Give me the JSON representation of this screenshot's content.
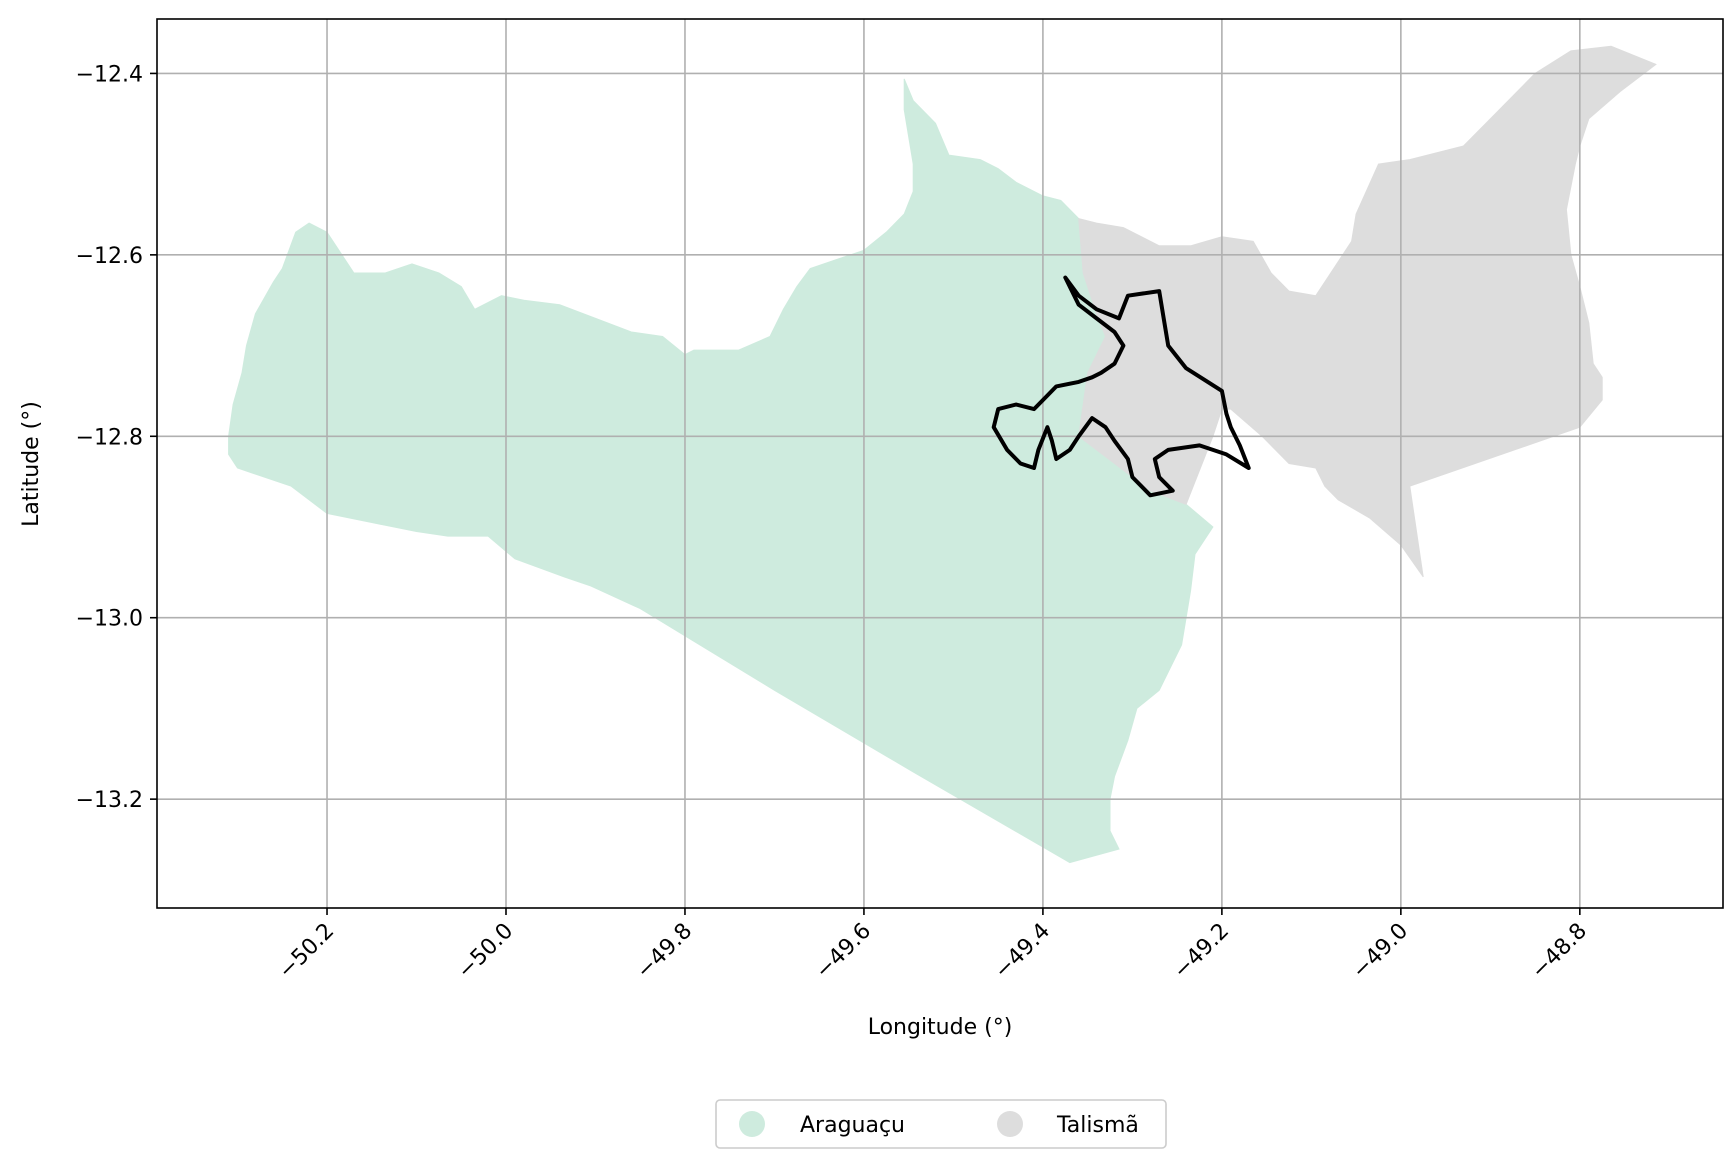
{
  "chart_data": {
    "type": "map",
    "xlabel": "Longitude (°)",
    "ylabel": "Latitude (°)",
    "xlim": [
      -50.39,
      -48.64
    ],
    "ylim": [
      -13.32,
      -12.34
    ],
    "xticks": [
      -50.2,
      -50.0,
      -49.8,
      -49.6,
      -49.4,
      -49.2,
      -49.0,
      -48.8
    ],
    "yticks": [
      -12.4,
      -12.6,
      -12.8,
      -13.0,
      -13.2
    ],
    "xtick_labels": [
      "−50.2",
      "−50.0",
      "−49.8",
      "−49.6",
      "−49.4",
      "−49.2",
      "−49.0",
      "−48.8"
    ],
    "ytick_labels": [
      "−12.4",
      "−12.6",
      "−12.8",
      "−13.0",
      "−13.2"
    ],
    "grid": true,
    "legend_position": "bottom-center",
    "regions": [
      {
        "name": "Araguaçu",
        "color": "#ceebde",
        "polygon": [
          [
            -49.555,
            -12.406
          ],
          [
            -49.545,
            -12.43
          ],
          [
            -49.52,
            -12.455
          ],
          [
            -49.505,
            -12.49
          ],
          [
            -49.47,
            -12.495
          ],
          [
            -49.45,
            -12.505
          ],
          [
            -49.43,
            -12.52
          ],
          [
            -49.4,
            -12.535
          ],
          [
            -49.38,
            -12.54
          ],
          [
            -49.36,
            -12.56
          ],
          [
            -49.355,
            -12.62
          ],
          [
            -49.34,
            -12.665
          ],
          [
            -49.33,
            -12.69
          ],
          [
            -49.35,
            -12.73
          ],
          [
            -49.36,
            -12.8
          ],
          [
            -49.32,
            -12.83
          ],
          [
            -49.28,
            -12.86
          ],
          [
            -49.24,
            -12.875
          ],
          [
            -49.21,
            -12.9
          ],
          [
            -49.23,
            -12.93
          ],
          [
            -49.235,
            -12.97
          ],
          [
            -49.245,
            -13.03
          ],
          [
            -49.27,
            -13.08
          ],
          [
            -49.295,
            -13.1
          ],
          [
            -49.305,
            -13.135
          ],
          [
            -49.32,
            -13.175
          ],
          [
            -49.325,
            -13.2
          ],
          [
            -49.325,
            -13.235
          ],
          [
            -49.315,
            -13.255
          ],
          [
            -49.37,
            -13.27
          ],
          [
            -49.545,
            -13.17
          ],
          [
            -49.7,
            -13.08
          ],
          [
            -49.85,
            -12.99
          ],
          [
            -49.905,
            -12.965
          ],
          [
            -49.935,
            -12.955
          ],
          [
            -49.99,
            -12.935
          ],
          [
            -50.02,
            -12.91
          ],
          [
            -50.065,
            -12.91
          ],
          [
            -50.1,
            -12.905
          ],
          [
            -50.15,
            -12.895
          ],
          [
            -50.2,
            -12.885
          ],
          [
            -50.24,
            -12.855
          ],
          [
            -50.3,
            -12.835
          ],
          [
            -50.31,
            -12.82
          ],
          [
            -50.31,
            -12.8
          ],
          [
            -50.305,
            -12.765
          ],
          [
            -50.295,
            -12.73
          ],
          [
            -50.29,
            -12.7
          ],
          [
            -50.28,
            -12.665
          ],
          [
            -50.26,
            -12.63
          ],
          [
            -50.25,
            -12.615
          ],
          [
            -50.235,
            -12.575
          ],
          [
            -50.22,
            -12.565
          ],
          [
            -50.2,
            -12.575
          ],
          [
            -50.17,
            -12.62
          ],
          [
            -50.135,
            -12.62
          ],
          [
            -50.105,
            -12.61
          ],
          [
            -50.075,
            -12.62
          ],
          [
            -50.05,
            -12.635
          ],
          [
            -50.035,
            -12.66
          ],
          [
            -50.005,
            -12.645
          ],
          [
            -49.98,
            -12.65
          ],
          [
            -49.94,
            -12.655
          ],
          [
            -49.9,
            -12.67
          ],
          [
            -49.86,
            -12.685
          ],
          [
            -49.825,
            -12.69
          ],
          [
            -49.8,
            -12.71
          ],
          [
            -49.79,
            -12.705
          ],
          [
            -49.74,
            -12.705
          ],
          [
            -49.705,
            -12.69
          ],
          [
            -49.69,
            -12.66
          ],
          [
            -49.675,
            -12.635
          ],
          [
            -49.66,
            -12.615
          ],
          [
            -49.63,
            -12.605
          ],
          [
            -49.6,
            -12.595
          ],
          [
            -49.575,
            -12.575
          ],
          [
            -49.555,
            -12.555
          ],
          [
            -49.545,
            -12.53
          ],
          [
            -49.545,
            -12.5
          ],
          [
            -49.55,
            -12.47
          ],
          [
            -49.555,
            -12.44
          ]
        ]
      },
      {
        "name": "Talismã",
        "color": "#dddddd",
        "polygon": [
          [
            -49.36,
            -12.56
          ],
          [
            -49.34,
            -12.565
          ],
          [
            -49.31,
            -12.57
          ],
          [
            -49.27,
            -12.59
          ],
          [
            -49.235,
            -12.59
          ],
          [
            -49.2,
            -12.58
          ],
          [
            -49.165,
            -12.585
          ],
          [
            -49.145,
            -12.62
          ],
          [
            -49.125,
            -12.64
          ],
          [
            -49.095,
            -12.645
          ],
          [
            -49.075,
            -12.615
          ],
          [
            -49.055,
            -12.585
          ],
          [
            -49.05,
            -12.555
          ],
          [
            -49.025,
            -12.5
          ],
          [
            -48.99,
            -12.495
          ],
          [
            -48.93,
            -12.48
          ],
          [
            -48.895,
            -12.445
          ],
          [
            -48.85,
            -12.4
          ],
          [
            -48.81,
            -12.375
          ],
          [
            -48.765,
            -12.37
          ],
          [
            -48.715,
            -12.39
          ],
          [
            -48.755,
            -12.42
          ],
          [
            -48.79,
            -12.45
          ],
          [
            -48.8,
            -12.48
          ],
          [
            -48.805,
            -12.5
          ],
          [
            -48.815,
            -12.55
          ],
          [
            -48.81,
            -12.6
          ],
          [
            -48.8,
            -12.635
          ],
          [
            -48.79,
            -12.675
          ],
          [
            -48.785,
            -12.72
          ],
          [
            -48.775,
            -12.735
          ],
          [
            -48.775,
            -12.76
          ],
          [
            -48.8,
            -12.79
          ],
          [
            -48.99,
            -12.855
          ],
          [
            -48.975,
            -12.955
          ],
          [
            -49.0,
            -12.92
          ],
          [
            -49.035,
            -12.89
          ],
          [
            -49.07,
            -12.87
          ],
          [
            -49.085,
            -12.855
          ],
          [
            -49.095,
            -12.835
          ],
          [
            -49.125,
            -12.83
          ],
          [
            -49.155,
            -12.8
          ],
          [
            -49.19,
            -12.77
          ],
          [
            -49.2,
            -12.77
          ],
          [
            -49.21,
            -12.8
          ],
          [
            -49.24,
            -12.875
          ],
          [
            -49.28,
            -12.86
          ],
          [
            -49.32,
            -12.83
          ],
          [
            -49.36,
            -12.8
          ],
          [
            -49.35,
            -12.73
          ],
          [
            -49.33,
            -12.69
          ],
          [
            -49.34,
            -12.665
          ],
          [
            -49.355,
            -12.62
          ]
        ]
      }
    ],
    "outline": {
      "stroke": "#000000",
      "polygon": [
        [
          -49.375,
          -12.625
        ],
        [
          -49.36,
          -12.645
        ],
        [
          -49.34,
          -12.66
        ],
        [
          -49.315,
          -12.67
        ],
        [
          -49.305,
          -12.645
        ],
        [
          -49.27,
          -12.64
        ],
        [
          -49.265,
          -12.67
        ],
        [
          -49.26,
          -12.7
        ],
        [
          -49.24,
          -12.725
        ],
        [
          -49.2,
          -12.75
        ],
        [
          -49.195,
          -12.775
        ],
        [
          -49.19,
          -12.79
        ],
        [
          -49.18,
          -12.81
        ],
        [
          -49.17,
          -12.835
        ],
        [
          -49.195,
          -12.82
        ],
        [
          -49.225,
          -12.81
        ],
        [
          -49.26,
          -12.815
        ],
        [
          -49.275,
          -12.825
        ],
        [
          -49.27,
          -12.845
        ],
        [
          -49.255,
          -12.86
        ],
        [
          -49.28,
          -12.865
        ],
        [
          -49.3,
          -12.845
        ],
        [
          -49.305,
          -12.825
        ],
        [
          -49.32,
          -12.805
        ],
        [
          -49.33,
          -12.79
        ],
        [
          -49.345,
          -12.78
        ],
        [
          -49.36,
          -12.8
        ],
        [
          -49.37,
          -12.815
        ],
        [
          -49.385,
          -12.825
        ],
        [
          -49.39,
          -12.805
        ],
        [
          -49.395,
          -12.79
        ],
        [
          -49.405,
          -12.815
        ],
        [
          -49.41,
          -12.835
        ],
        [
          -49.425,
          -12.83
        ],
        [
          -49.44,
          -12.815
        ],
        [
          -49.455,
          -12.79
        ],
        [
          -49.45,
          -12.77
        ],
        [
          -49.43,
          -12.765
        ],
        [
          -49.41,
          -12.77
        ],
        [
          -49.395,
          -12.755
        ],
        [
          -49.385,
          -12.745
        ],
        [
          -49.36,
          -12.74
        ],
        [
          -49.345,
          -12.735
        ],
        [
          -49.335,
          -12.73
        ],
        [
          -49.32,
          -12.72
        ],
        [
          -49.31,
          -12.7
        ],
        [
          -49.32,
          -12.685
        ],
        [
          -49.34,
          -12.67
        ],
        [
          -49.36,
          -12.655
        ]
      ]
    }
  }
}
